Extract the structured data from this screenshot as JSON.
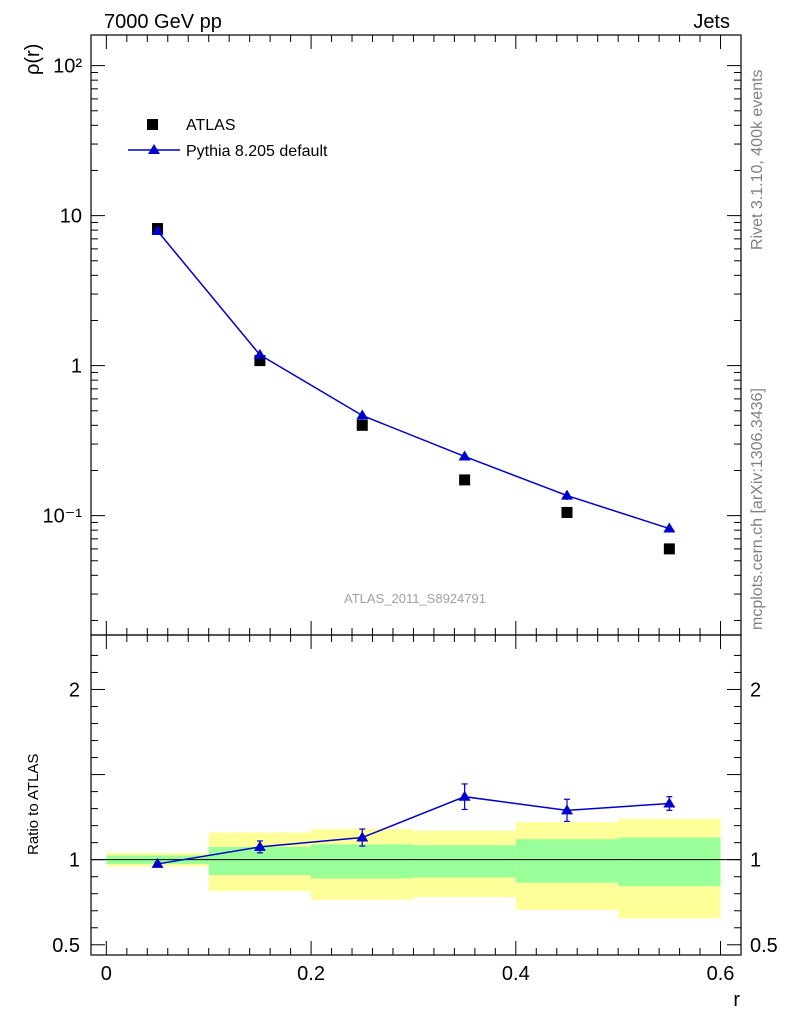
{
  "header": {
    "left": "7000 GeV pp",
    "right": "Jets"
  },
  "side_labels": {
    "rivet": "Rivet 3.1.10,  400k events",
    "mcplots": "mcplots.cern.ch [arXiv:1306.3436]"
  },
  "watermark": "ATLAS_2011_S8924791",
  "legend": {
    "data_label": "ATLAS",
    "mc_label": "Pythia 8.205 default"
  },
  "colors": {
    "data": "#000000",
    "mc": "#0000cc",
    "band_outer": "#ffff99",
    "band_inner": "#99ff99"
  },
  "chart_data": [
    {
      "type": "scatter",
      "panel": "main",
      "ylabel": "ρ(r)",
      "yscale": "log",
      "ylim": [
        0.016,
        160
      ],
      "y_tick_labels": [
        "10⁻¹",
        "1",
        "10",
        "10²"
      ],
      "x": [
        0.05,
        0.15,
        0.25,
        0.35,
        0.45,
        0.55
      ],
      "series": [
        {
          "name": "ATLAS",
          "marker": "square",
          "values": [
            8.2,
            1.08,
            0.4,
            0.173,
            0.105,
            0.06
          ]
        },
        {
          "name": "Pythia 8.205 default",
          "marker": "triangle",
          "line": true,
          "values": [
            7.9,
            1.18,
            0.465,
            0.248,
            0.136,
            0.082
          ],
          "err": [
            0.25,
            0.04,
            0.03,
            0.014,
            0.009,
            0.003
          ]
        }
      ]
    },
    {
      "type": "line",
      "panel": "ratio",
      "ylabel": "Ratio to ATLAS",
      "xlabel": "r",
      "ylim": [
        0.44,
        2.32
      ],
      "xlim": [
        -0.015,
        0.62
      ],
      "x_tick_labels": [
        "0",
        "0.2",
        "0.4",
        "0.6"
      ],
      "y_tick_labels": [
        "0.5",
        "1",
        "2"
      ],
      "bins": [
        [
          0.0,
          0.1
        ],
        [
          0.1,
          0.2
        ],
        [
          0.2,
          0.3
        ],
        [
          0.3,
          0.4
        ],
        [
          0.4,
          0.5
        ],
        [
          0.5,
          0.6
        ]
      ],
      "band_outer": [
        [
          0.96,
          1.04
        ],
        [
          0.815,
          1.16
        ],
        [
          0.765,
          1.18
        ],
        [
          0.78,
          1.17
        ],
        [
          0.705,
          1.22
        ],
        [
          0.655,
          1.24
        ]
      ],
      "band_inner": [
        [
          0.975,
          1.025
        ],
        [
          0.91,
          1.075
        ],
        [
          0.89,
          1.09
        ],
        [
          0.895,
          1.085
        ],
        [
          0.865,
          1.12
        ],
        [
          0.845,
          1.13
        ]
      ],
      "x": [
        0.05,
        0.15,
        0.25,
        0.35,
        0.45,
        0.55
      ],
      "series": [
        {
          "name": "Pythia 8.205 default / ATLAS",
          "values": [
            0.975,
            1.075,
            1.13,
            1.37,
            1.29,
            1.33
          ],
          "err": [
            0.01,
            0.035,
            0.05,
            0.075,
            0.065,
            0.04
          ]
        }
      ],
      "reference_line": 1.0
    }
  ]
}
